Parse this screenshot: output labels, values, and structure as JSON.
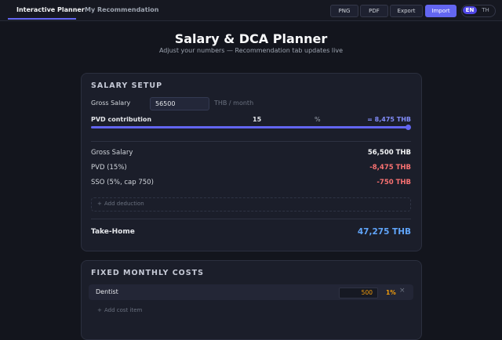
{
  "tabs": [
    "Interactive Planner",
    "My Recommendation"
  ],
  "toolbar": {
    "buttons": [
      "PNG",
      "PDF",
      "Export",
      "Import"
    ],
    "languages": [
      "EN",
      "TH"
    ]
  },
  "header": {
    "title": "Salary & DCA Planner",
    "subtitle": "Adjust your numbers — Recommendation tab updates live"
  },
  "salary_setup": {
    "title": "SALARY SETUP",
    "gross_label": "Gross Salary",
    "gross_input": "56500",
    "gross_unit": "THB / month",
    "pvd_label": "PVD contribution",
    "pvd_value": "15",
    "pvd_unit": "%",
    "pvd_amount": "= 8,475 THB",
    "rows": [
      {
        "label": "Gross Salary",
        "value": "56,500 THB"
      },
      {
        "label": "PVD (15%)",
        "value": "-8,475 THB"
      },
      {
        "label": "SSO (5%, cap 750)",
        "value": "-750 THB"
      }
    ],
    "add_label": "Add deduction",
    "takehome_label": "Take-Home",
    "takehome_value": "47,275 THB"
  },
  "fixed_costs": {
    "title": "FIXED MONTHLY COSTS",
    "items": [
      {
        "name": "Dentist",
        "amount": "500",
        "share": "1%"
      }
    ],
    "add_label": "Add cost item"
  }
}
